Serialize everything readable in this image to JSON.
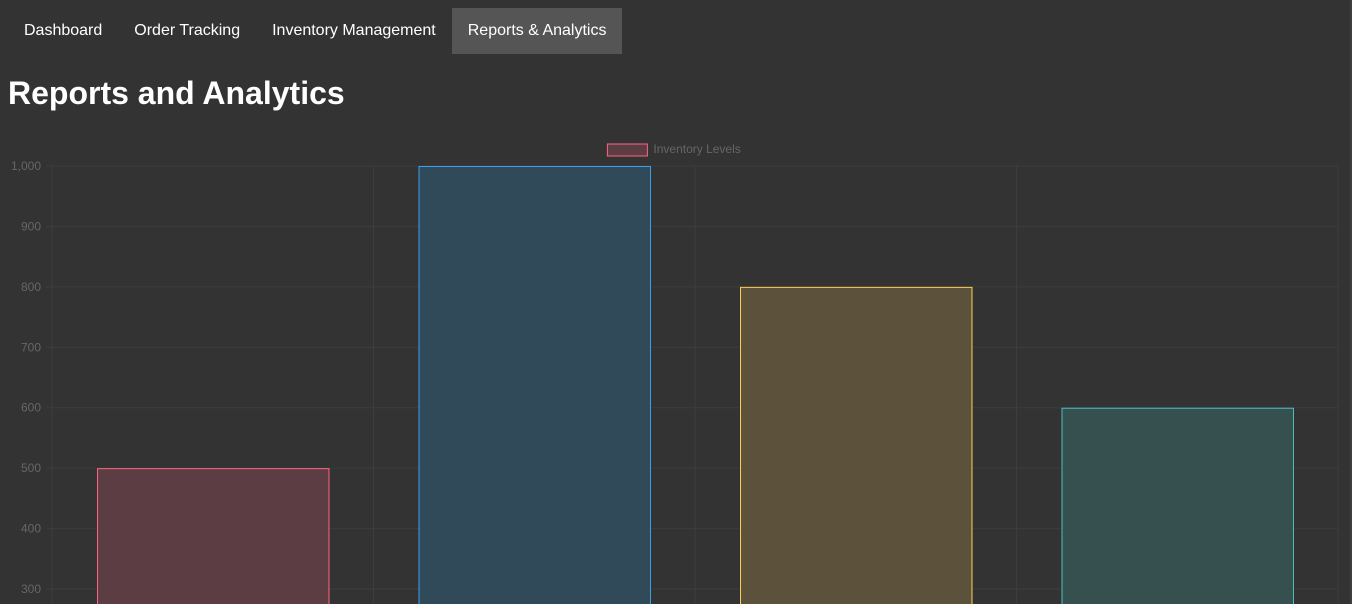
{
  "nav": {
    "tabs": [
      {
        "label": "Dashboard",
        "active": false
      },
      {
        "label": "Order Tracking",
        "active": false
      },
      {
        "label": "Inventory Management",
        "active": false
      },
      {
        "label": "Reports & Analytics",
        "active": true
      }
    ]
  },
  "page": {
    "title": "Reports and Analytics"
  },
  "chart_data": {
    "type": "bar",
    "categories": [
      "",
      "",
      "",
      ""
    ],
    "series": [
      {
        "name": "Inventory Levels",
        "values": [
          500,
          1000,
          800,
          600
        ],
        "fill_colors": [
          "#5c3d44",
          "#314a5a",
          "#5c523b",
          "#36504f"
        ],
        "border_colors": [
          "#ff6384",
          "#36a2eb",
          "#ffce56",
          "#4bc0c0"
        ]
      }
    ],
    "yticks": [
      1000,
      900,
      800,
      700,
      600,
      500,
      400,
      300
    ],
    "ytick_labels": [
      "1,000",
      "900",
      "800",
      "700",
      "600",
      "500",
      "400",
      "300"
    ],
    "ylim": [
      300,
      1000
    ],
    "grid": true,
    "legend_position": "top-center",
    "legend_swatch_fill": "#5c3d44",
    "legend_swatch_border": "#ff6384",
    "grid_color": "#3d3d3d",
    "tick_label_color": "#666666"
  }
}
